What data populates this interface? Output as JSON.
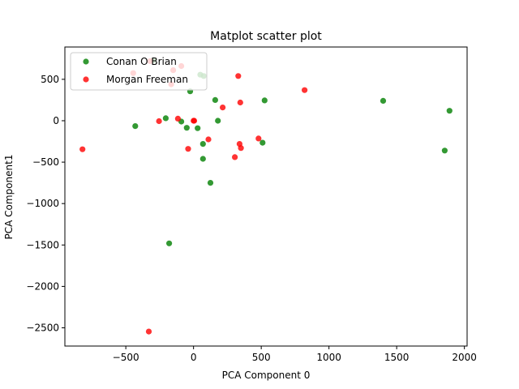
{
  "chart_data": {
    "type": "scatter",
    "title": "Matplot scatter plot",
    "xlabel": "PCA Component 0",
    "ylabel": "PCA Component1",
    "xlim": [
      -950,
      2020
    ],
    "ylim": [
      -2720,
      890
    ],
    "xticks": [
      -500,
      0,
      500,
      1000,
      1500,
      2000
    ],
    "yticks": [
      500,
      0,
      -500,
      -1000,
      -1500,
      -2000,
      -2500
    ],
    "xtick_labels": [
      "−500",
      "0",
      "500",
      "1000",
      "1500",
      "2000"
    ],
    "ytick_labels": [
      "500",
      "0",
      "−500",
      "−1000",
      "−1500",
      "−2000",
      "−2500"
    ],
    "grid": false,
    "legend_position": "top-left",
    "series": [
      {
        "name": "Conan O Brian",
        "color": "#008000",
        "points": [
          [
            -430,
            -65
          ],
          [
            -205,
            30
          ],
          [
            -90,
            -10
          ],
          [
            -50,
            -85
          ],
          [
            -25,
            355
          ],
          [
            -295,
            730
          ],
          [
            30,
            -90
          ],
          [
            50,
            555
          ],
          [
            75,
            540
          ],
          [
            70,
            -280
          ],
          [
            70,
            -460
          ],
          [
            125,
            -750
          ],
          [
            160,
            250
          ],
          [
            180,
            0
          ],
          [
            525,
            245
          ],
          [
            510,
            -265
          ],
          [
            1400,
            240
          ],
          [
            1890,
            120
          ],
          [
            1855,
            -360
          ],
          [
            -180,
            -1480
          ]
        ]
      },
      {
        "name": "Morgan Freeman",
        "color": "#ff0000",
        "points": [
          [
            -820,
            -345
          ],
          [
            -445,
            575
          ],
          [
            -320,
            720
          ],
          [
            -255,
            -5
          ],
          [
            -165,
            440
          ],
          [
            -150,
            610
          ],
          [
            -115,
            25
          ],
          [
            -90,
            660
          ],
          [
            -40,
            -340
          ],
          [
            0,
            0
          ],
          [
            5,
            0
          ],
          [
            110,
            -225
          ],
          [
            215,
            160
          ],
          [
            305,
            -440
          ],
          [
            330,
            540
          ],
          [
            345,
            220
          ],
          [
            340,
            -280
          ],
          [
            350,
            -330
          ],
          [
            480,
            -215
          ],
          [
            820,
            370
          ],
          [
            -330,
            -2545
          ]
        ]
      }
    ]
  }
}
